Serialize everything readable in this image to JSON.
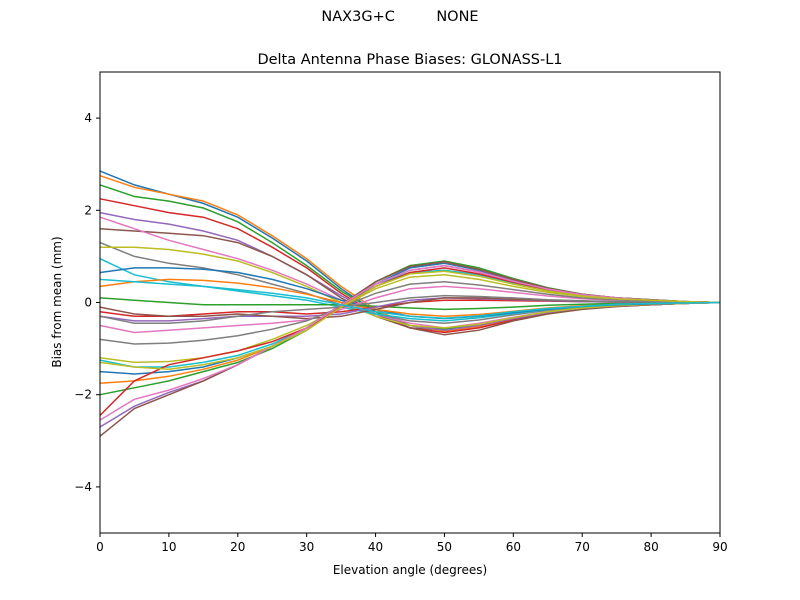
{
  "suptitle": "NAX3G+C         NONE",
  "chart_data": {
    "type": "line",
    "title": "Delta Antenna Phase Biases: GLONASS-L1",
    "xlabel": "Elevation angle (degrees)",
    "ylabel": "Bias from mean (mm)",
    "xlim": [
      0,
      90
    ],
    "ylim": [
      -5,
      5
    ],
    "xticks": [
      0,
      10,
      20,
      30,
      40,
      50,
      60,
      70,
      80,
      90
    ],
    "yticks": [
      -4,
      -2,
      0,
      2,
      4
    ],
    "grid": false,
    "colors": [
      "#1f77b4",
      "#ff7f0e",
      "#2ca02c",
      "#d62728",
      "#9467bd",
      "#8c564b",
      "#e377c2",
      "#7f7f7f",
      "#bcbd22",
      "#17becf"
    ],
    "x": [
      0,
      5,
      10,
      15,
      20,
      25,
      30,
      35,
      40,
      45,
      50,
      55,
      60,
      65,
      70,
      75,
      80,
      85,
      90
    ],
    "series": [
      {
        "values": [
          2.85,
          2.55,
          2.35,
          2.15,
          1.85,
          1.4,
          0.9,
          0.3,
          -0.2,
          -0.55,
          -0.6,
          -0.5,
          -0.35,
          -0.22,
          -0.13,
          -0.08,
          -0.05,
          -0.02,
          0
        ]
      },
      {
        "values": [
          2.75,
          2.5,
          2.35,
          2.2,
          1.9,
          1.45,
          0.95,
          0.35,
          -0.15,
          -0.5,
          -0.62,
          -0.52,
          -0.36,
          -0.23,
          -0.14,
          -0.08,
          -0.05,
          -0.02,
          0
        ]
      },
      {
        "values": [
          2.55,
          2.3,
          2.2,
          2.05,
          1.75,
          1.3,
          0.8,
          0.25,
          -0.2,
          -0.5,
          -0.58,
          -0.48,
          -0.33,
          -0.2,
          -0.12,
          -0.07,
          -0.04,
          -0.02,
          0
        ]
      },
      {
        "values": [
          2.25,
          2.1,
          1.95,
          1.85,
          1.6,
          1.2,
          0.75,
          0.2,
          -0.25,
          -0.55,
          -0.65,
          -0.55,
          -0.38,
          -0.24,
          -0.14,
          -0.08,
          -0.05,
          -0.02,
          0
        ]
      },
      {
        "values": [
          1.95,
          1.8,
          1.7,
          1.55,
          1.35,
          1.0,
          0.6,
          0.15,
          -0.25,
          -0.5,
          -0.6,
          -0.5,
          -0.35,
          -0.22,
          -0.13,
          -0.08,
          -0.05,
          -0.02,
          0
        ]
      },
      {
        "values": [
          1.6,
          1.55,
          1.5,
          1.45,
          1.3,
          1.0,
          0.6,
          0.1,
          -0.3,
          -0.55,
          -0.7,
          -0.6,
          -0.4,
          -0.25,
          -0.15,
          -0.09,
          -0.05,
          -0.02,
          0
        ]
      },
      {
        "values": [
          1.85,
          1.6,
          1.35,
          1.15,
          0.95,
          0.7,
          0.4,
          0.05,
          -0.25,
          -0.45,
          -0.55,
          -0.45,
          -0.32,
          -0.2,
          -0.12,
          -0.07,
          -0.04,
          -0.02,
          0
        ]
      },
      {
        "values": [
          1.3,
          1.0,
          0.85,
          0.75,
          0.6,
          0.4,
          0.2,
          -0.05,
          -0.25,
          -0.4,
          -0.45,
          -0.38,
          -0.27,
          -0.17,
          -0.1,
          -0.06,
          -0.03,
          -0.01,
          0
        ]
      },
      {
        "values": [
          1.2,
          1.2,
          1.15,
          1.05,
          0.9,
          0.65,
          0.35,
          0.0,
          -0.3,
          -0.5,
          -0.55,
          -0.47,
          -0.33,
          -0.2,
          -0.12,
          -0.07,
          -0.04,
          -0.02,
          0
        ]
      },
      {
        "values": [
          0.95,
          0.6,
          0.45,
          0.35,
          0.25,
          0.15,
          0.05,
          -0.1,
          -0.25,
          -0.35,
          -0.4,
          -0.33,
          -0.24,
          -0.15,
          -0.09,
          -0.05,
          -0.03,
          -0.01,
          0
        ]
      },
      {
        "values": [
          0.65,
          0.75,
          0.75,
          0.72,
          0.65,
          0.5,
          0.3,
          0.05,
          -0.15,
          -0.3,
          -0.35,
          -0.3,
          -0.22,
          -0.14,
          -0.08,
          -0.05,
          -0.03,
          -0.01,
          0
        ]
      },
      {
        "values": [
          0.35,
          0.45,
          0.5,
          0.48,
          0.42,
          0.32,
          0.18,
          0.0,
          -0.15,
          -0.25,
          -0.3,
          -0.26,
          -0.19,
          -0.12,
          -0.07,
          -0.04,
          -0.02,
          -0.01,
          0
        ]
      },
      {
        "values": [
          0.1,
          0.05,
          0.0,
          -0.05,
          -0.05,
          -0.05,
          -0.05,
          -0.05,
          -0.08,
          -0.12,
          -0.15,
          -0.13,
          -0.1,
          -0.06,
          -0.04,
          -0.02,
          -0.01,
          0,
          0
        ]
      },
      {
        "values": [
          -0.2,
          -0.3,
          -0.3,
          -0.25,
          -0.2,
          -0.2,
          -0.25,
          -0.2,
          -0.1,
          0.0,
          0.05,
          0.05,
          0.04,
          0.03,
          0.02,
          0.01,
          0.01,
          0,
          0
        ]
      },
      {
        "values": [
          -0.3,
          -0.4,
          -0.4,
          -0.35,
          -0.3,
          -0.3,
          -0.3,
          -0.25,
          -0.1,
          0.05,
          0.1,
          0.08,
          0.06,
          0.04,
          0.02,
          0.01,
          0.01,
          0,
          0
        ]
      },
      {
        "values": [
          -0.1,
          -0.25,
          -0.3,
          -0.3,
          -0.25,
          -0.3,
          -0.35,
          -0.3,
          -0.15,
          0.0,
          0.1,
          0.1,
          0.07,
          0.05,
          0.03,
          0.02,
          0.01,
          0,
          0
        ]
      },
      {
        "values": [
          -0.5,
          -0.65,
          -0.6,
          -0.55,
          -0.5,
          -0.45,
          -0.38,
          -0.15,
          0.1,
          0.3,
          0.35,
          0.3,
          0.22,
          0.14,
          0.08,
          0.05,
          0.03,
          0.01,
          0
        ]
      },
      {
        "values": [
          -0.8,
          -0.9,
          -0.88,
          -0.82,
          -0.72,
          -0.58,
          -0.4,
          -0.1,
          0.2,
          0.4,
          0.45,
          0.38,
          0.28,
          0.18,
          0.1,
          0.06,
          0.03,
          0.01,
          0
        ]
      },
      {
        "values": [
          -1.2,
          -1.3,
          -1.28,
          -1.2,
          -1.05,
          -0.8,
          -0.5,
          -0.1,
          0.3,
          0.55,
          0.6,
          0.5,
          0.35,
          0.22,
          0.13,
          0.08,
          0.05,
          0.02,
          0
        ]
      },
      {
        "values": [
          -1.25,
          -1.4,
          -1.4,
          -1.3,
          -1.15,
          -0.9,
          -0.55,
          -0.05,
          0.4,
          0.65,
          0.7,
          0.6,
          0.42,
          0.26,
          0.15,
          0.09,
          0.05,
          0.02,
          0
        ]
      },
      {
        "values": [
          -1.5,
          -1.55,
          -1.5,
          -1.4,
          -1.2,
          -0.95,
          -0.6,
          -0.1,
          0.4,
          0.75,
          0.85,
          0.7,
          0.48,
          0.3,
          0.17,
          0.1,
          0.06,
          0.02,
          0
        ]
      },
      {
        "values": [
          -1.75,
          -1.7,
          -1.6,
          -1.45,
          -1.25,
          -0.95,
          -0.6,
          -0.1,
          0.45,
          0.8,
          0.88,
          0.72,
          0.5,
          0.31,
          0.18,
          0.1,
          0.06,
          0.02,
          0
        ]
      },
      {
        "values": [
          -2.0,
          -1.85,
          -1.7,
          -1.5,
          -1.3,
          -1.0,
          -0.6,
          -0.05,
          0.45,
          0.8,
          0.9,
          0.75,
          0.52,
          0.32,
          0.18,
          0.1,
          0.06,
          0.02,
          0
        ]
      },
      {
        "values": [
          -2.45,
          -1.7,
          -1.35,
          -1.2,
          -1.05,
          -0.85,
          -0.55,
          -0.1,
          0.35,
          0.65,
          0.75,
          0.62,
          0.44,
          0.28,
          0.16,
          0.09,
          0.05,
          0.02,
          0
        ]
      },
      {
        "values": [
          -2.7,
          -2.25,
          -1.95,
          -1.7,
          -1.35,
          -0.95,
          -0.55,
          -0.05,
          0.4,
          0.7,
          0.8,
          0.67,
          0.47,
          0.29,
          0.17,
          0.1,
          0.05,
          0.02,
          0
        ]
      },
      {
        "values": [
          -2.9,
          -2.3,
          -2.0,
          -1.7,
          -1.35,
          -0.95,
          -0.55,
          -0.05,
          0.45,
          0.78,
          0.88,
          0.72,
          0.5,
          0.31,
          0.18,
          0.1,
          0.06,
          0.02,
          0
        ]
      },
      {
        "values": [
          -2.55,
          -2.1,
          -1.9,
          -1.65,
          -1.35,
          -0.95,
          -0.55,
          -0.05,
          0.4,
          0.7,
          0.8,
          0.66,
          0.46,
          0.29,
          0.17,
          0.1,
          0.05,
          0.02,
          0
        ]
      },
      {
        "values": [
          -0.3,
          -0.45,
          -0.45,
          -0.4,
          -0.3,
          -0.2,
          -0.15,
          -0.1,
          0.0,
          0.1,
          0.15,
          0.13,
          0.1,
          0.06,
          0.04,
          0.02,
          0.01,
          0,
          0
        ]
      },
      {
        "values": [
          -1.3,
          -1.4,
          -1.45,
          -1.35,
          -1.2,
          -0.95,
          -0.6,
          -0.1,
          0.35,
          0.62,
          0.68,
          0.57,
          0.4,
          0.25,
          0.14,
          0.08,
          0.05,
          0.02,
          0
        ]
      },
      {
        "values": [
          0.5,
          0.45,
          0.4,
          0.35,
          0.28,
          0.2,
          0.1,
          -0.05,
          -0.2,
          -0.3,
          -0.34,
          -0.29,
          -0.2,
          -0.13,
          -0.08,
          -0.04,
          -0.02,
          -0.01,
          0
        ]
      }
    ]
  }
}
